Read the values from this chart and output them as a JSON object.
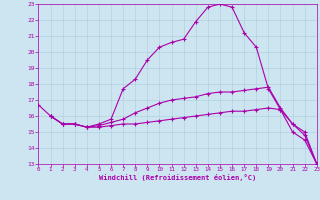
{
  "background_color": "#cce5f0",
  "grid_color": "#aaccdd",
  "line_color": "#aa00aa",
  "marker": "+",
  "xlabel": "Windchill (Refroidissement éolien,°C)",
  "xlim": [
    0,
    23
  ],
  "ylim": [
    13,
    23
  ],
  "yticks": [
    13,
    14,
    15,
    16,
    17,
    18,
    19,
    20,
    21,
    22,
    23
  ],
  "xticks": [
    0,
    1,
    2,
    3,
    4,
    5,
    6,
    7,
    8,
    9,
    10,
    11,
    12,
    13,
    14,
    15,
    16,
    17,
    18,
    19,
    20,
    21,
    22,
    23
  ],
  "series1": [
    [
      0,
      16.7
    ],
    [
      1,
      16.0
    ],
    [
      2,
      15.5
    ],
    [
      3,
      15.5
    ],
    [
      4,
      15.3
    ],
    [
      5,
      15.5
    ],
    [
      6,
      15.8
    ],
    [
      7,
      17.7
    ],
    [
      8,
      18.3
    ],
    [
      9,
      19.5
    ],
    [
      10,
      20.3
    ],
    [
      11,
      20.6
    ],
    [
      12,
      20.8
    ],
    [
      13,
      21.9
    ],
    [
      14,
      22.8
    ],
    [
      15,
      23.0
    ],
    [
      16,
      22.8
    ],
    [
      17,
      21.2
    ],
    [
      18,
      20.3
    ],
    [
      19,
      17.7
    ],
    [
      20,
      16.4
    ],
    [
      21,
      15.0
    ],
    [
      22,
      14.5
    ],
    [
      23,
      13.0
    ]
  ],
  "series2": [
    [
      1,
      16.0
    ],
    [
      2,
      15.5
    ],
    [
      3,
      15.5
    ],
    [
      4,
      15.3
    ],
    [
      5,
      15.4
    ],
    [
      6,
      15.6
    ],
    [
      7,
      15.8
    ],
    [
      8,
      16.2
    ],
    [
      9,
      16.5
    ],
    [
      10,
      16.8
    ],
    [
      11,
      17.0
    ],
    [
      12,
      17.1
    ],
    [
      13,
      17.2
    ],
    [
      14,
      17.4
    ],
    [
      15,
      17.5
    ],
    [
      16,
      17.5
    ],
    [
      17,
      17.6
    ],
    [
      18,
      17.7
    ],
    [
      19,
      17.8
    ],
    [
      20,
      16.5
    ],
    [
      21,
      15.5
    ],
    [
      22,
      15.0
    ],
    [
      23,
      13.0
    ]
  ],
  "series3": [
    [
      1,
      16.0
    ],
    [
      2,
      15.5
    ],
    [
      3,
      15.5
    ],
    [
      4,
      15.3
    ],
    [
      5,
      15.3
    ],
    [
      6,
      15.4
    ],
    [
      7,
      15.5
    ],
    [
      8,
      15.5
    ],
    [
      9,
      15.6
    ],
    [
      10,
      15.7
    ],
    [
      11,
      15.8
    ],
    [
      12,
      15.9
    ],
    [
      13,
      16.0
    ],
    [
      14,
      16.1
    ],
    [
      15,
      16.2
    ],
    [
      16,
      16.3
    ],
    [
      17,
      16.3
    ],
    [
      18,
      16.4
    ],
    [
      19,
      16.5
    ],
    [
      20,
      16.4
    ],
    [
      21,
      15.5
    ],
    [
      22,
      14.8
    ],
    [
      23,
      13.0
    ]
  ]
}
